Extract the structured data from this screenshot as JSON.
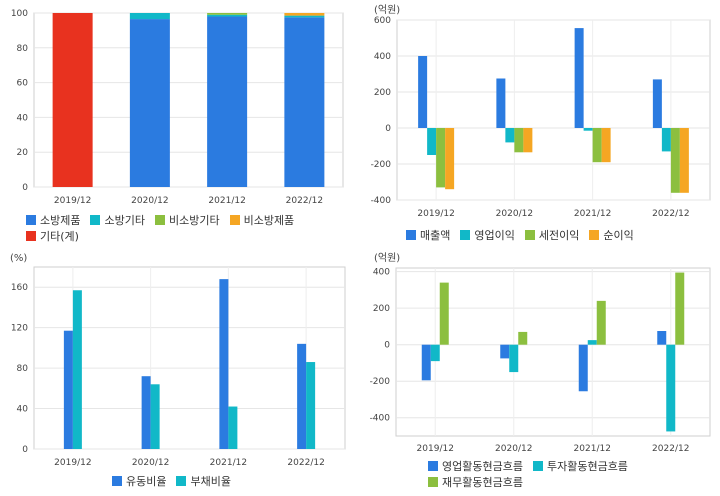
{
  "chart_data": [
    {
      "type": "bar",
      "stacked": true,
      "unit_label": "",
      "categories": [
        "2019/12",
        "2020/12",
        "2021/12",
        "2022/12"
      ],
      "ylim": [
        0,
        100
      ],
      "yticks": [
        0,
        20,
        40,
        60,
        80,
        100
      ],
      "series": [
        {
          "name": "소방제품",
          "color": "#2b7be0",
          "values": [
            0,
            96.5,
            98,
            97.5
          ]
        },
        {
          "name": "소방기타",
          "color": "#11b8c8",
          "values": [
            0,
            3.5,
            1,
            1
          ]
        },
        {
          "name": "비소방기타",
          "color": "#8cbf3f",
          "values": [
            0,
            0,
            1,
            0
          ]
        },
        {
          "name": "비소방제품",
          "color": "#f5a623",
          "values": [
            0,
            0,
            0,
            1.5
          ]
        },
        {
          "name": "기타(계)",
          "color": "#e8321f",
          "values": [
            100,
            0,
            0,
            0
          ]
        }
      ],
      "grid": true,
      "legend_position": "bottom"
    },
    {
      "type": "bar",
      "stacked": false,
      "unit_label": "(억원)",
      "categories": [
        "2019/12",
        "2020/12",
        "2021/12",
        "2022/12"
      ],
      "ylim": [
        -400,
        600
      ],
      "yticks": [
        -400,
        -200,
        0,
        200,
        400,
        600
      ],
      "series": [
        {
          "name": "매출액",
          "color": "#2b7be0",
          "values": [
            400,
            275,
            555,
            270
          ]
        },
        {
          "name": "영업이익",
          "color": "#11b8c8",
          "values": [
            -150,
            -80,
            -15,
            -130
          ]
        },
        {
          "name": "세전이익",
          "color": "#8cbf3f",
          "values": [
            -330,
            -135,
            -190,
            -360
          ]
        },
        {
          "name": "순이익",
          "color": "#f5a623",
          "values": [
            -340,
            -135,
            -190,
            -360
          ]
        }
      ],
      "grid": true,
      "legend_position": "bottom"
    },
    {
      "type": "bar",
      "stacked": false,
      "unit_label": "(%)",
      "categories": [
        "2019/12",
        "2020/12",
        "2021/12",
        "2022/12"
      ],
      "ylim": [
        0,
        180
      ],
      "yticks": [
        0,
        40,
        80,
        120,
        160
      ],
      "series": [
        {
          "name": "유동비율",
          "color": "#2b7be0",
          "values": [
            117,
            72,
            168,
            104
          ]
        },
        {
          "name": "부채비율",
          "color": "#11b8c8",
          "values": [
            157,
            64,
            42,
            86
          ]
        }
      ],
      "grid": true,
      "legend_position": "bottom"
    },
    {
      "type": "bar",
      "stacked": false,
      "unit_label": "(억원)",
      "categories": [
        "2019/12",
        "2020/12",
        "2021/12",
        "2022/12"
      ],
      "ylim": [
        -500,
        420
      ],
      "yticks": [
        -400,
        -200,
        0,
        200,
        400
      ],
      "series": [
        {
          "name": "영업활동현금흐름",
          "color": "#2b7be0",
          "values": [
            -195,
            -75,
            -255,
            75
          ]
        },
        {
          "name": "투자활동현금흐름",
          "color": "#11b8c8",
          "values": [
            -90,
            -150,
            25,
            -475
          ]
        },
        {
          "name": "재무활동현금흐름",
          "color": "#8cbf3f",
          "values": [
            340,
            70,
            240,
            395
          ]
        }
      ],
      "grid": true,
      "legend_position": "bottom"
    }
  ]
}
